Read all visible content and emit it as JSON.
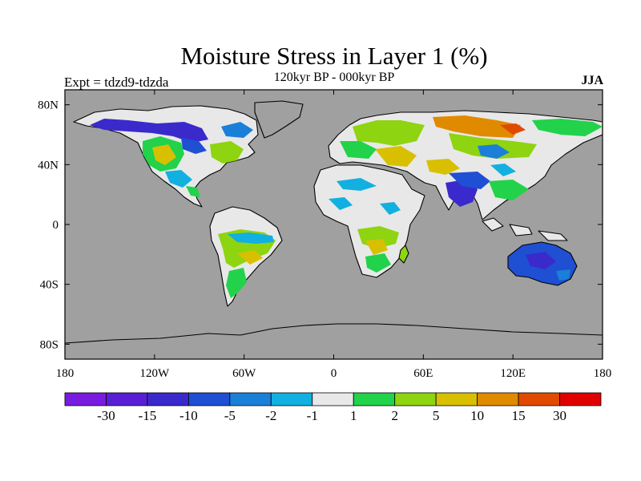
{
  "header": {
    "title": "Moisture Stress in Layer 1 (%)",
    "subtitle": "120kyr BP - 000kyr BP",
    "left_label": "Expt = tdzd9-tdzda",
    "right_label": "JJA"
  },
  "map": {
    "lon_range": [
      -180,
      180
    ],
    "lat_range": [
      -90,
      90
    ],
    "x_ticks": [
      {
        "lon": -180,
        "label": "180"
      },
      {
        "lon": -120,
        "label": "120W"
      },
      {
        "lon": -60,
        "label": "60W"
      },
      {
        "lon": 0,
        "label": "0"
      },
      {
        "lon": 60,
        "label": "60E"
      },
      {
        "lon": 120,
        "label": "120E"
      },
      {
        "lon": 180,
        "label": "180"
      }
    ],
    "y_ticks": [
      {
        "lat": 80,
        "label": "80N"
      },
      {
        "lat": 40,
        "label": "40N"
      },
      {
        "lat": 0,
        "label": "0"
      },
      {
        "lat": -40,
        "label": "40S"
      },
      {
        "lat": -80,
        "label": "80S"
      }
    ],
    "ocean_color": "#a0a0a0",
    "land_default_color": "#e8e8e8"
  },
  "colorbar": {
    "colors": [
      "#7a1be0",
      "#5a1ed6",
      "#3a2acc",
      "#1f4fd2",
      "#1a7fd8",
      "#12b0e0",
      "#e8e8e8",
      "#22d24a",
      "#8ed410",
      "#d8c000",
      "#e08a00",
      "#e04a00",
      "#e00000"
    ],
    "labels": [
      "-30",
      "-15",
      "-10",
      "-5",
      "-2",
      "-1",
      "1",
      "2",
      "5",
      "10",
      "15",
      "30"
    ]
  }
}
